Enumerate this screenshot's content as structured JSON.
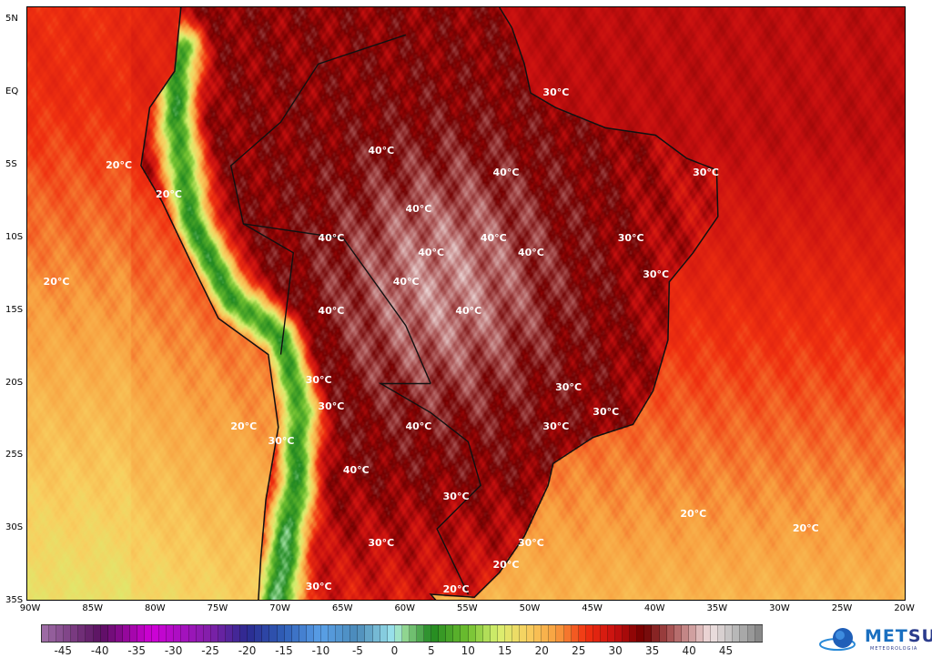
{
  "map": {
    "variable": "temperature",
    "lat_labels": [
      "5N",
      "EQ",
      "5S",
      "10S",
      "15S",
      "20S",
      "25S",
      "30S",
      "35S"
    ],
    "lon_labels": [
      "90W",
      "85W",
      "80W",
      "75W",
      "70W",
      "65W",
      "60W",
      "55W",
      "50W",
      "45W",
      "40W",
      "35W",
      "30W",
      "25W",
      "20W"
    ],
    "contour_labels": {
      "c20": "20°C",
      "c30": "30°C",
      "c40": "40°C"
    }
  },
  "colorbar": {
    "ticks": [
      "-45",
      "-40",
      "-35",
      "-30",
      "-25",
      "-20",
      "-15",
      "-10",
      "-5",
      "0",
      "5",
      "10",
      "15",
      "20",
      "25",
      "30",
      "35",
      "40",
      "45"
    ],
    "range": [
      -48,
      50
    ],
    "stops": [
      [
        -48,
        "#a070a8"
      ],
      [
        -40,
        "#5a1060"
      ],
      [
        -33,
        "#d000d8"
      ],
      [
        -25,
        "#8020a8"
      ],
      [
        -20,
        "#2a2a90"
      ],
      [
        -15,
        "#3060b8"
      ],
      [
        -10,
        "#5aa0e8"
      ],
      [
        -5,
        "#4a8ab8"
      ],
      [
        0,
        "#a0e8f0"
      ],
      [
        1,
        "#a0e0a0"
      ],
      [
        5,
        "#208820"
      ],
      [
        10,
        "#70c030"
      ],
      [
        14,
        "#d8f070"
      ],
      [
        18,
        "#f8d060"
      ],
      [
        22,
        "#f8a040"
      ],
      [
        26,
        "#f03010"
      ],
      [
        30,
        "#c81010"
      ],
      [
        34,
        "#700000"
      ],
      [
        38,
        "#b06060"
      ],
      [
        43,
        "#f0e0e0"
      ],
      [
        46,
        "#c0c0c0"
      ],
      [
        50,
        "#808080"
      ]
    ]
  },
  "logo": {
    "brand_a": "MET",
    "brand_b": "SUL",
    "sub": "METEOROLOGIA"
  }
}
